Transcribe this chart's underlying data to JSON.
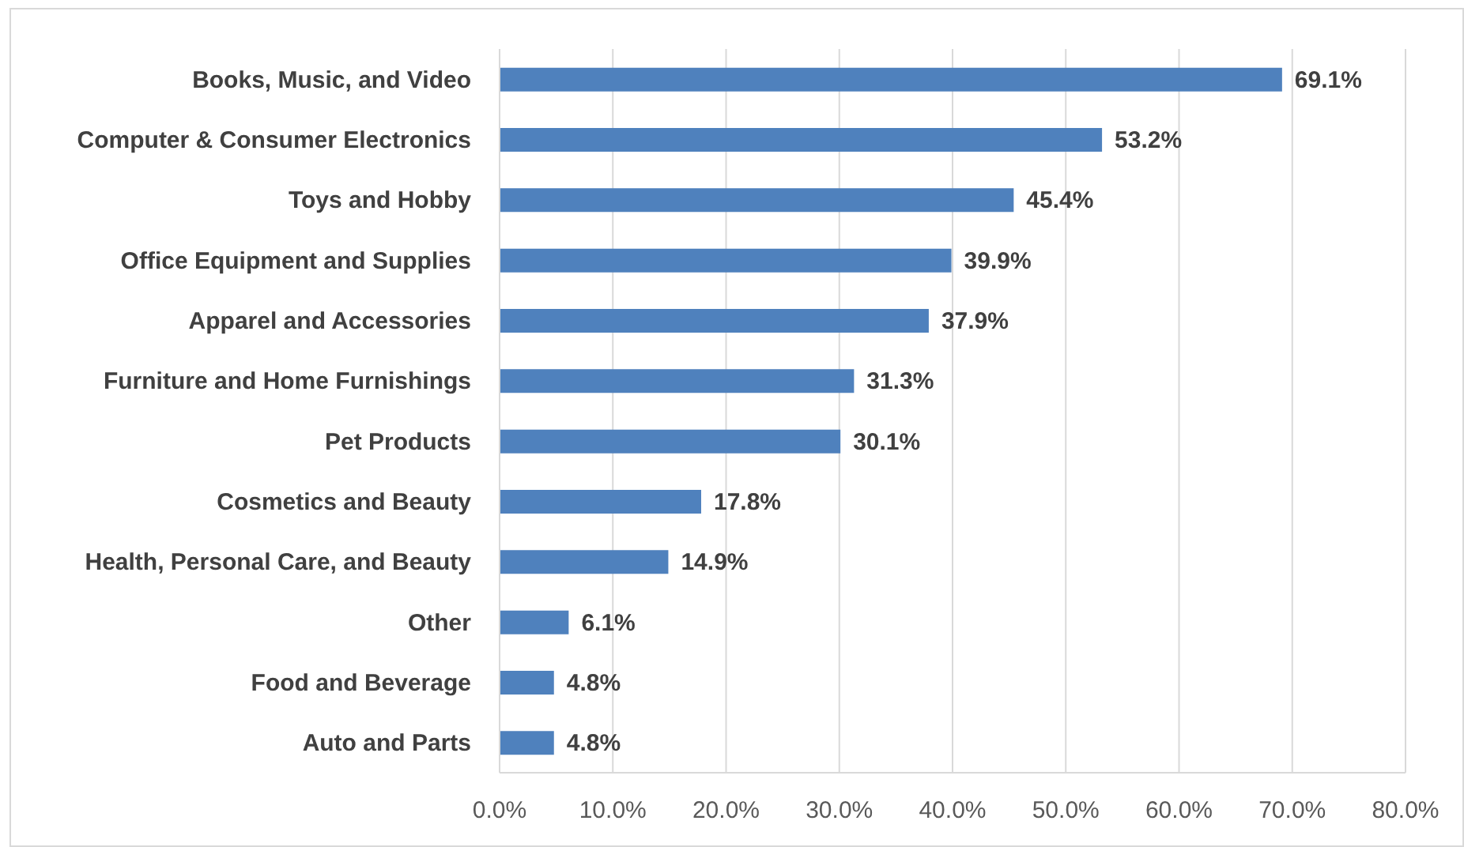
{
  "chart_data": {
    "type": "bar",
    "orientation": "horizontal",
    "categories": [
      "Books, Music, and Video",
      "Computer & Consumer Electronics",
      "Toys and Hobby",
      "Office Equipment and Supplies",
      "Apparel and Accessories",
      "Furniture and Home Furnishings",
      "Pet Products",
      "Cosmetics and Beauty",
      "Health, Personal Care, and Beauty",
      "Other",
      "Food and Beverage",
      "Auto and Parts"
    ],
    "values": [
      69.1,
      53.2,
      45.4,
      39.9,
      37.9,
      31.3,
      30.1,
      17.8,
      14.9,
      6.1,
      4.8,
      4.8
    ],
    "value_labels": [
      "69.1%",
      "53.2%",
      "45.4%",
      "39.9%",
      "37.9%",
      "31.3%",
      "30.1%",
      "17.8%",
      "14.9%",
      "6.1%",
      "4.8%",
      "4.8%"
    ],
    "color": "#4f81bd",
    "xlim": [
      0,
      80
    ],
    "xticks": [
      {
        "value": 0,
        "label": "0.0%"
      },
      {
        "value": 10,
        "label": "10.0%"
      },
      {
        "value": 20,
        "label": "20.0%"
      },
      {
        "value": 30,
        "label": "30.0%"
      },
      {
        "value": 40,
        "label": "40.0%"
      },
      {
        "value": 50,
        "label": "50.0%"
      },
      {
        "value": 60,
        "label": "60.0%"
      },
      {
        "value": 70,
        "label": "70.0%"
      },
      {
        "value": 80,
        "label": "80.0%"
      }
    ],
    "grid": "x"
  }
}
